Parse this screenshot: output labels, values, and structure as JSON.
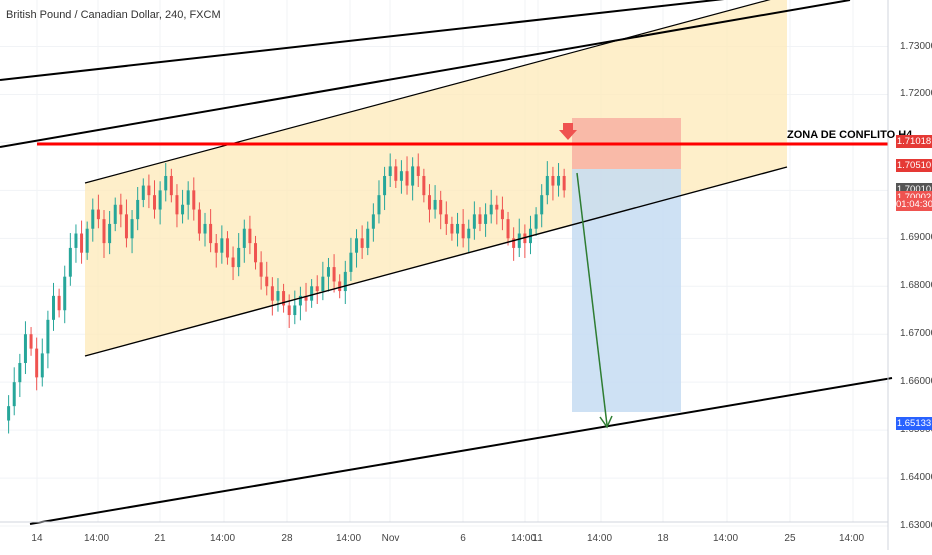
{
  "chart_data": {
    "type": "candlestick",
    "title": "British Pound / Canadian Dollar, 240, FXCM",
    "ylim": [
      1.625,
      1.7397
    ],
    "y_ticks": [
      "1.73000",
      "1.72000",
      "1.71000",
      "1.70000",
      "1.69000",
      "1.68000",
      "1.67000",
      "1.66000",
      "1.65000",
      "1.64000",
      "1.63000"
    ],
    "x_ticks": [
      "14",
      "14:00",
      "21",
      "14:00",
      "28",
      "14:00",
      "Nov",
      "6",
      "14:00",
      "11",
      "14:00",
      "18",
      "14:00",
      "25",
      "14:00"
    ],
    "price_tags": [
      {
        "label": "1.71018",
        "color": "#e53935"
      },
      {
        "label": "1.70510",
        "color": "#e53935"
      },
      {
        "label": "1.70010",
        "color": "#555555"
      },
      {
        "label": "1.70002",
        "color": "#ef5350"
      },
      {
        "label": "01:04:30",
        "color": "#ef5350"
      },
      {
        "label": "1.65133",
        "color": "#2962ff"
      }
    ],
    "annotation": "ZONA DE CONFLITO H4",
    "colors": {
      "up": "#26a69a",
      "down": "#ef5350",
      "resistance": "#ff0000",
      "channel_fill": "#fde9b8",
      "stop_zone": "#f8b4a4",
      "target_zone": "#c6dcf2",
      "projection": "#2e7d32"
    }
  }
}
